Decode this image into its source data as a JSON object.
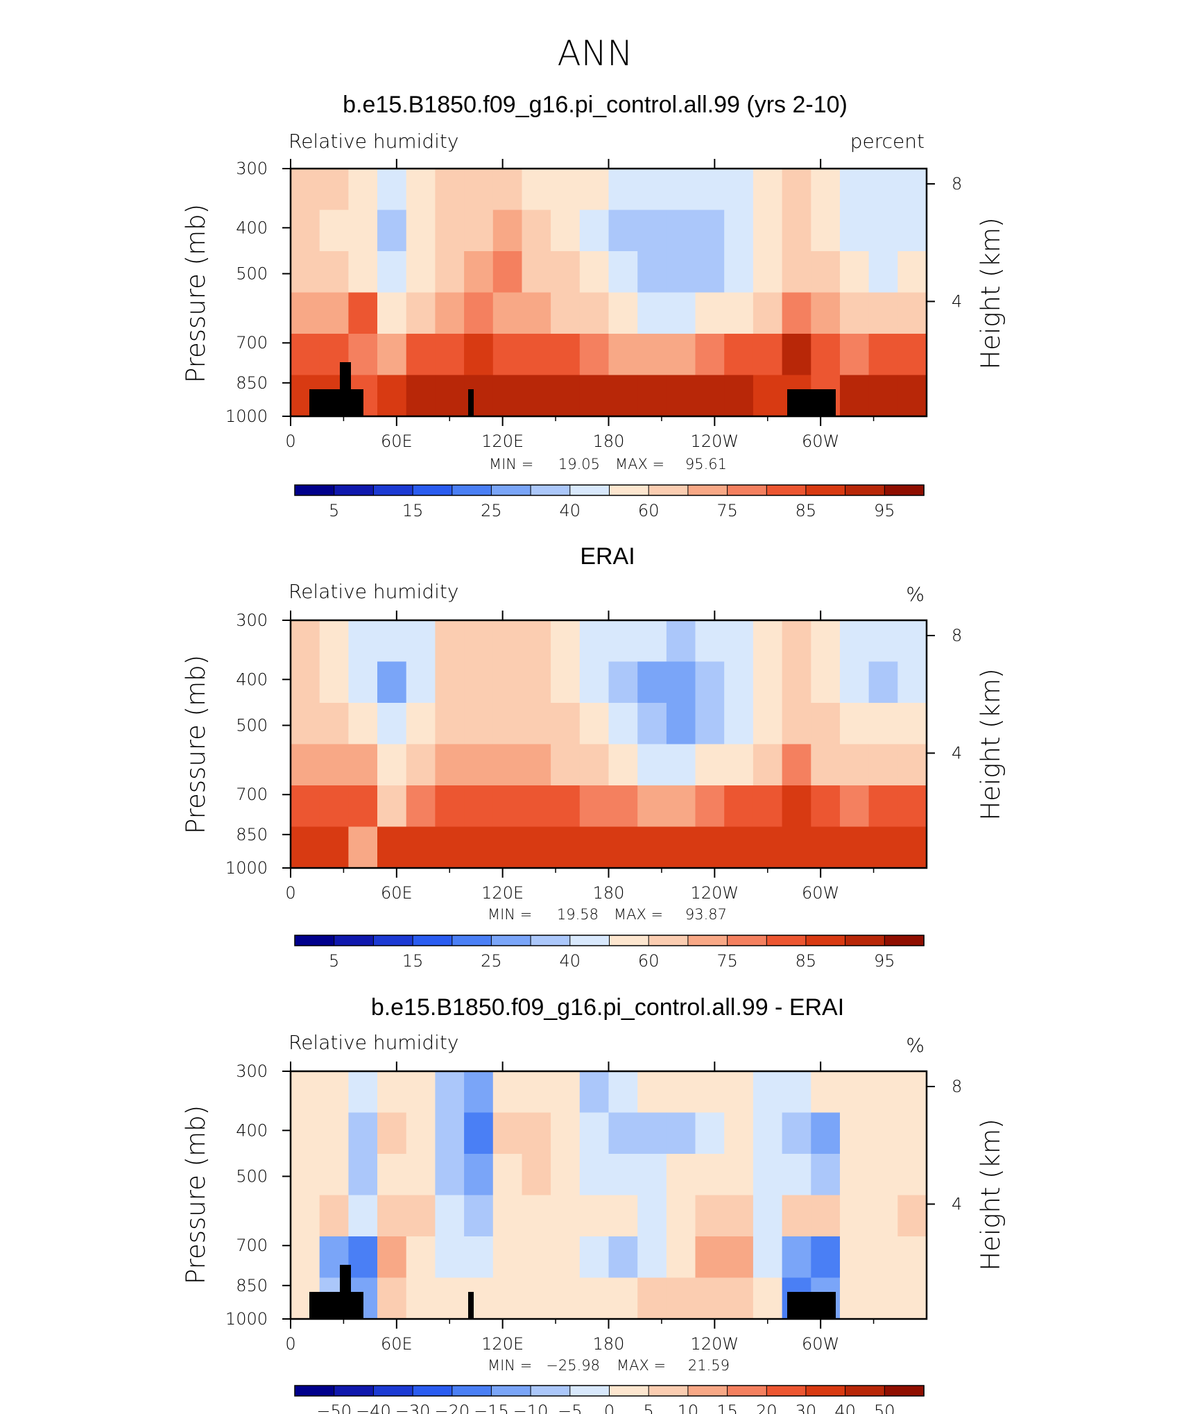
{
  "supertitle": "ANN",
  "chart_data": [
    {
      "type": "heatmap",
      "title": "b.e15.B1850.f09_g16.pi_control.all.99 (yrs 2-10)",
      "left_label": "Relative humidity",
      "right_label": "percent",
      "ylabel": "Pressure (mb)",
      "ylabel_right": "Height (km)",
      "x_ticks": [
        "0",
        "60E",
        "120E",
        "180",
        "120W",
        "60W"
      ],
      "y_ticks": [
        "300",
        "400",
        "500",
        "700",
        "850",
        "1000"
      ],
      "y_ticks_right": [
        "8",
        "4"
      ],
      "stats": {
        "min_label": "MIN =",
        "min": "19.05",
        "max_label": "MAX =",
        "max": "95.61"
      },
      "colorbar_labels": [
        "5",
        "15",
        "25",
        "40",
        "60",
        "75",
        "85",
        "95"
      ],
      "levels": [
        5,
        10,
        15,
        20,
        25,
        30,
        40,
        50,
        60,
        70,
        75,
        80,
        85,
        90,
        95
      ],
      "values": [
        [
          62,
          60,
          58,
          45,
          55,
          62,
          66,
          62,
          58,
          55,
          50,
          45,
          42,
          40,
          42,
          48,
          52,
          60,
          56,
          48,
          46,
          48
        ],
        [
          62,
          58,
          52,
          32,
          52,
          62,
          66,
          70,
          64,
          55,
          46,
          38,
          30,
          30,
          34,
          44,
          54,
          62,
          58,
          46,
          44,
          46
        ],
        [
          66,
          62,
          58,
          44,
          56,
          66,
          70,
          76,
          68,
          60,
          50,
          40,
          32,
          30,
          34,
          46,
          56,
          64,
          62,
          50,
          48,
          50
        ],
        [
          72,
          74,
          80,
          52,
          66,
          72,
          76,
          74,
          70,
          66,
          60,
          52,
          46,
          46,
          50,
          58,
          66,
          76,
          72,
          64,
          62,
          64
        ],
        [
          80,
          84,
          78,
          70,
          82,
          84,
          86,
          84,
          82,
          80,
          78,
          74,
          72,
          72,
          76,
          80,
          84,
          90,
          80,
          78,
          80,
          82
        ],
        [
          86,
          86,
          84,
          88,
          90,
          90,
          90,
          90,
          90,
          90,
          90,
          90,
          90,
          92,
          92,
          92,
          88,
          86,
          84,
          90,
          92,
          90
        ]
      ]
    },
    {
      "type": "heatmap",
      "title": "ERAI",
      "left_label": "Relative humidity",
      "right_label": "%",
      "ylabel": "Pressure (mb)",
      "ylabel_right": "Height (km)",
      "x_ticks": [
        "0",
        "60E",
        "120E",
        "180",
        "120W",
        "60W"
      ],
      "y_ticks": [
        "300",
        "400",
        "500",
        "700",
        "850",
        "1000"
      ],
      "y_ticks_right": [
        "8",
        "4"
      ],
      "stats": {
        "min_label": "MIN =",
        "min": "19.58",
        "max_label": "MAX =",
        "max": "93.87"
      },
      "colorbar_labels": [
        "5",
        "15",
        "25",
        "40",
        "60",
        "75",
        "85",
        "95"
      ],
      "levels": [
        5,
        10,
        15,
        20,
        25,
        30,
        40,
        50,
        60,
        70,
        75,
        80,
        85,
        90,
        95
      ],
      "values": [
        [
          60,
          58,
          46,
          40,
          48,
          62,
          66,
          64,
          60,
          55,
          48,
          44,
          40,
          38,
          40,
          46,
          54,
          60,
          54,
          46,
          44,
          46
        ],
        [
          60,
          56,
          40,
          28,
          46,
          64,
          66,
          66,
          64,
          58,
          46,
          36,
          28,
          26,
          30,
          44,
          56,
          62,
          56,
          44,
          38,
          46
        ],
        [
          64,
          62,
          50,
          42,
          54,
          66,
          68,
          68,
          66,
          60,
          52,
          40,
          30,
          28,
          34,
          48,
          58,
          66,
          60,
          52,
          50,
          54
        ],
        [
          70,
          72,
          74,
          52,
          66,
          70,
          72,
          72,
          70,
          66,
          60,
          52,
          46,
          46,
          50,
          58,
          66,
          76,
          68,
          64,
          62,
          64
        ],
        [
          80,
          84,
          80,
          66,
          78,
          82,
          84,
          84,
          82,
          80,
          78,
          76,
          74,
          74,
          76,
          80,
          84,
          88,
          80,
          78,
          80,
          82
        ],
        [
          88,
          88,
          70,
          86,
          88,
          88,
          88,
          88,
          88,
          88,
          88,
          88,
          88,
          88,
          88,
          88,
          88,
          88,
          86,
          88,
          88,
          88
        ]
      ]
    },
    {
      "type": "heatmap",
      "title": "b.e15.B1850.f09_g16.pi_control.all.99 - ERAI",
      "left_label": "Relative humidity",
      "right_label": "%",
      "ylabel": "Pressure (mb)",
      "ylabel_right": "Height (km)",
      "x_ticks": [
        "0",
        "60E",
        "120E",
        "180",
        "120W",
        "60W"
      ],
      "y_ticks": [
        "300",
        "400",
        "500",
        "700",
        "850",
        "1000"
      ],
      "y_ticks_right": [
        "8",
        "4"
      ],
      "stats": {
        "min_label": "MIN =",
        "min": "−25.98",
        "max_label": "MAX =",
        "max": "21.59"
      },
      "colorbar_labels": [
        "−50",
        "−40",
        "−30",
        "−20",
        "−15",
        "−10",
        "−5",
        "0",
        "5",
        "10",
        "15",
        "20",
        "30",
        "40",
        "50"
      ],
      "levels": [
        -50,
        -40,
        -30,
        -20,
        -15,
        -10,
        -5,
        0,
        5,
        10,
        15,
        20,
        30,
        40,
        50
      ],
      "values": [
        [
          2,
          3,
          -4,
          4,
          2,
          -6,
          -14,
          4,
          3,
          1,
          -6,
          -4,
          1,
          2,
          3,
          4,
          -2,
          -4,
          2,
          1,
          2,
          2
        ],
        [
          2,
          3,
          -8,
          6,
          4,
          -8,
          -16,
          6,
          6,
          4,
          -4,
          -6,
          -10,
          -6,
          -2,
          4,
          -2,
          -6,
          -12,
          4,
          2,
          2
        ],
        [
          3,
          4,
          -6,
          4,
          4,
          -10,
          -14,
          4,
          8,
          4,
          -3,
          -2,
          -3,
          0,
          2,
          4,
          -1,
          -4,
          -10,
          2,
          2,
          3
        ],
        [
          4,
          6,
          -4,
          8,
          6,
          -4,
          -8,
          2,
          4,
          4,
          2,
          0,
          -3,
          4,
          8,
          6,
          -2,
          6,
          8,
          4,
          4,
          8
        ],
        [
          2,
          -14,
          -16,
          10,
          4,
          -4,
          -4,
          2,
          2,
          1,
          -4,
          -8,
          -2,
          4,
          12,
          10,
          -2,
          -14,
          -16,
          4,
          4,
          4
        ],
        [
          2,
          -10,
          -12,
          6,
          3,
          2,
          2,
          2,
          2,
          3,
          3,
          4,
          6,
          8,
          8,
          6,
          2,
          -18,
          -12,
          3,
          2,
          2
        ]
      ]
    }
  ],
  "colors": {
    "negative": [
      "#00008b",
      "#0f18ad",
      "#1c3ad3",
      "#2a5cf0",
      "#4a7ff5",
      "#7aa5f8",
      "#abc7fa",
      "#d8e8fc"
    ],
    "positive": [
      "#fde6cf",
      "#fbcdb1",
      "#f8a886",
      "#f4805f",
      "#ec5631",
      "#d83a12",
      "#b82708",
      "#8f0e00"
    ]
  }
}
